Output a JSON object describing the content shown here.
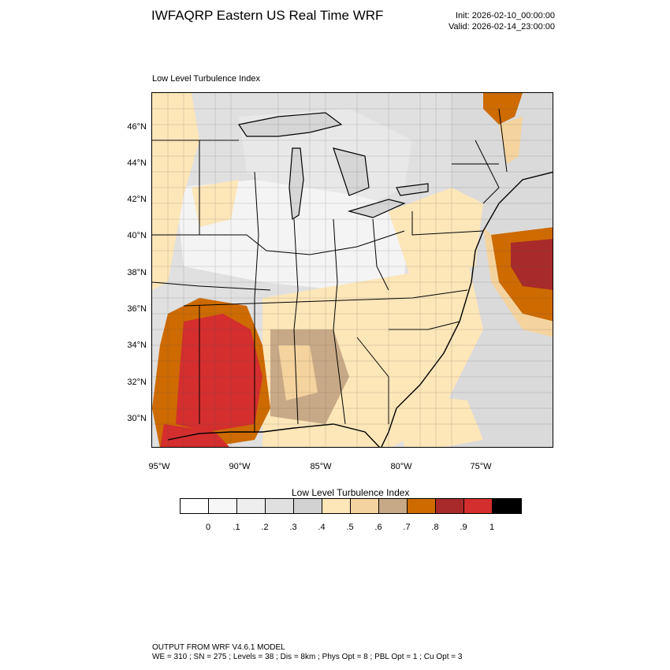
{
  "header": {
    "title": "IWFAQRP Eastern US Real Time WRF",
    "init": "Init: 2026-02-10_00:00:00",
    "valid": "Valid: 2026-02-14_23:00:00"
  },
  "panel": {
    "title": "Low Level Turbulence Index"
  },
  "map": {
    "lat_labels": [
      "46°N",
      "44°N",
      "42°N",
      "40°N",
      "38°N",
      "36°N",
      "34°N",
      "32°N",
      "30°N"
    ],
    "lon_labels": [
      "95°W",
      "90°W",
      "85°W",
      "80°W",
      "75°W"
    ]
  },
  "legend": {
    "title": "Low Level Turbulence Index",
    "colors": [
      "#ffffff",
      "#f7f7f7",
      "#eeeeee",
      "#e0e0e0",
      "#d2d2d2",
      "#fde6b8",
      "#f5d39e",
      "#c8a987",
      "#cd6a00",
      "#a82a2a",
      "#d42e2e",
      "#000000"
    ],
    "labels": [
      "0",
      ".1",
      ".2",
      ".3",
      ".4",
      ".5",
      ".6",
      ".7",
      ".8",
      ".9",
      "1"
    ]
  },
  "footer": {
    "line1": "OUTPUT FROM WRF V4.6.1 MODEL",
    "line2": "WE = 310 ; SN = 275 ; Levels = 38 ; Dis = 8km ; Phys Opt = 8 ; PBL Opt = 1 ; Cu Opt = 3"
  }
}
